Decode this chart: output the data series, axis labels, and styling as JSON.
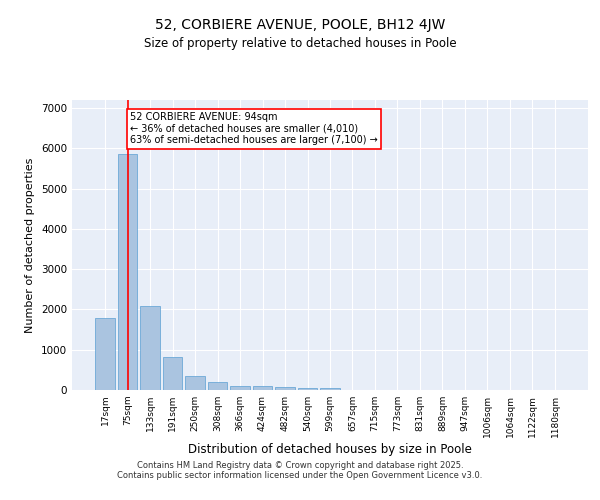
{
  "title_line1": "52, CORBIERE AVENUE, POOLE, BH12 4JW",
  "title_line2": "Size of property relative to detached houses in Poole",
  "xlabel": "Distribution of detached houses by size in Poole",
  "ylabel": "Number of detached properties",
  "categories": [
    "17sqm",
    "75sqm",
    "133sqm",
    "191sqm",
    "250sqm",
    "308sqm",
    "366sqm",
    "424sqm",
    "482sqm",
    "540sqm",
    "599sqm",
    "657sqm",
    "715sqm",
    "773sqm",
    "831sqm",
    "889sqm",
    "947sqm",
    "1006sqm",
    "1064sqm",
    "1122sqm",
    "1180sqm"
  ],
  "values": [
    1780,
    5850,
    2090,
    830,
    340,
    190,
    110,
    100,
    75,
    60,
    55,
    0,
    0,
    0,
    0,
    0,
    0,
    0,
    0,
    0,
    0
  ],
  "bar_color": "#aac4e0",
  "bar_edge_color": "#5a9fd4",
  "red_line_x": 1,
  "annotation_text": "52 CORBIERE AVENUE: 94sqm\n← 36% of detached houses are smaller (4,010)\n63% of semi-detached houses are larger (7,100) →",
  "annotation_box_color": "white",
  "annotation_border_color": "red",
  "ylim": [
    0,
    7200
  ],
  "yticks": [
    0,
    1000,
    2000,
    3000,
    4000,
    5000,
    6000,
    7000
  ],
  "background_color": "#e8eef8",
  "grid_color": "white",
  "footer_line1": "Contains HM Land Registry data © Crown copyright and database right 2025.",
  "footer_line2": "Contains public sector information licensed under the Open Government Licence v3.0."
}
